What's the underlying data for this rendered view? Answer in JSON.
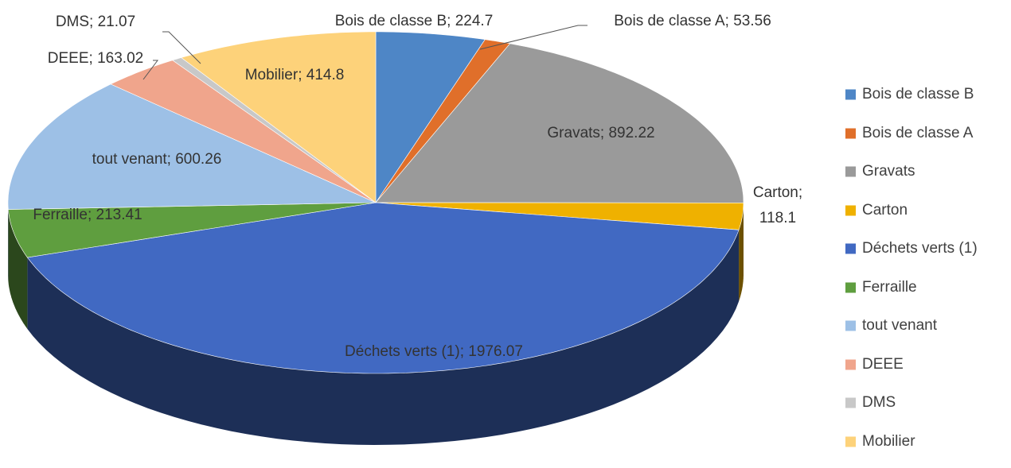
{
  "chart_data": {
    "type": "pie3d",
    "categories": [
      "Bois de classe B",
      "Bois de classe A",
      "Gravats",
      "Carton",
      "Déchets verts (1)",
      "Ferraille",
      "tout venant",
      "DEEE",
      "DMS",
      "Mobilier"
    ],
    "values": [
      224.7,
      53.56,
      892.22,
      118.1,
      1976.07,
      213.41,
      600.26,
      163.02,
      21.07,
      414.8
    ],
    "value_labels": [
      "Bois de classe B; 224.7",
      "Bois de classe A; 53.56",
      "Gravats; 892.22",
      "Carton; 118.1",
      "Déchets verts (1); 1976.07",
      "Ferraille; 213.41",
      "tout venant; 600.26",
      "DEEE; 163.02",
      "DMS; 21.07",
      "Mobilier; 414.8"
    ],
    "colors": [
      "#4e86c6",
      "#e06f2a",
      "#9a9a9a",
      "#efb100",
      "#4169c2",
      "#5f9e3f",
      "#9dc0e6",
      "#f0a58c",
      "#c8c8c8",
      "#fdd27a"
    ],
    "legend": "right"
  }
}
